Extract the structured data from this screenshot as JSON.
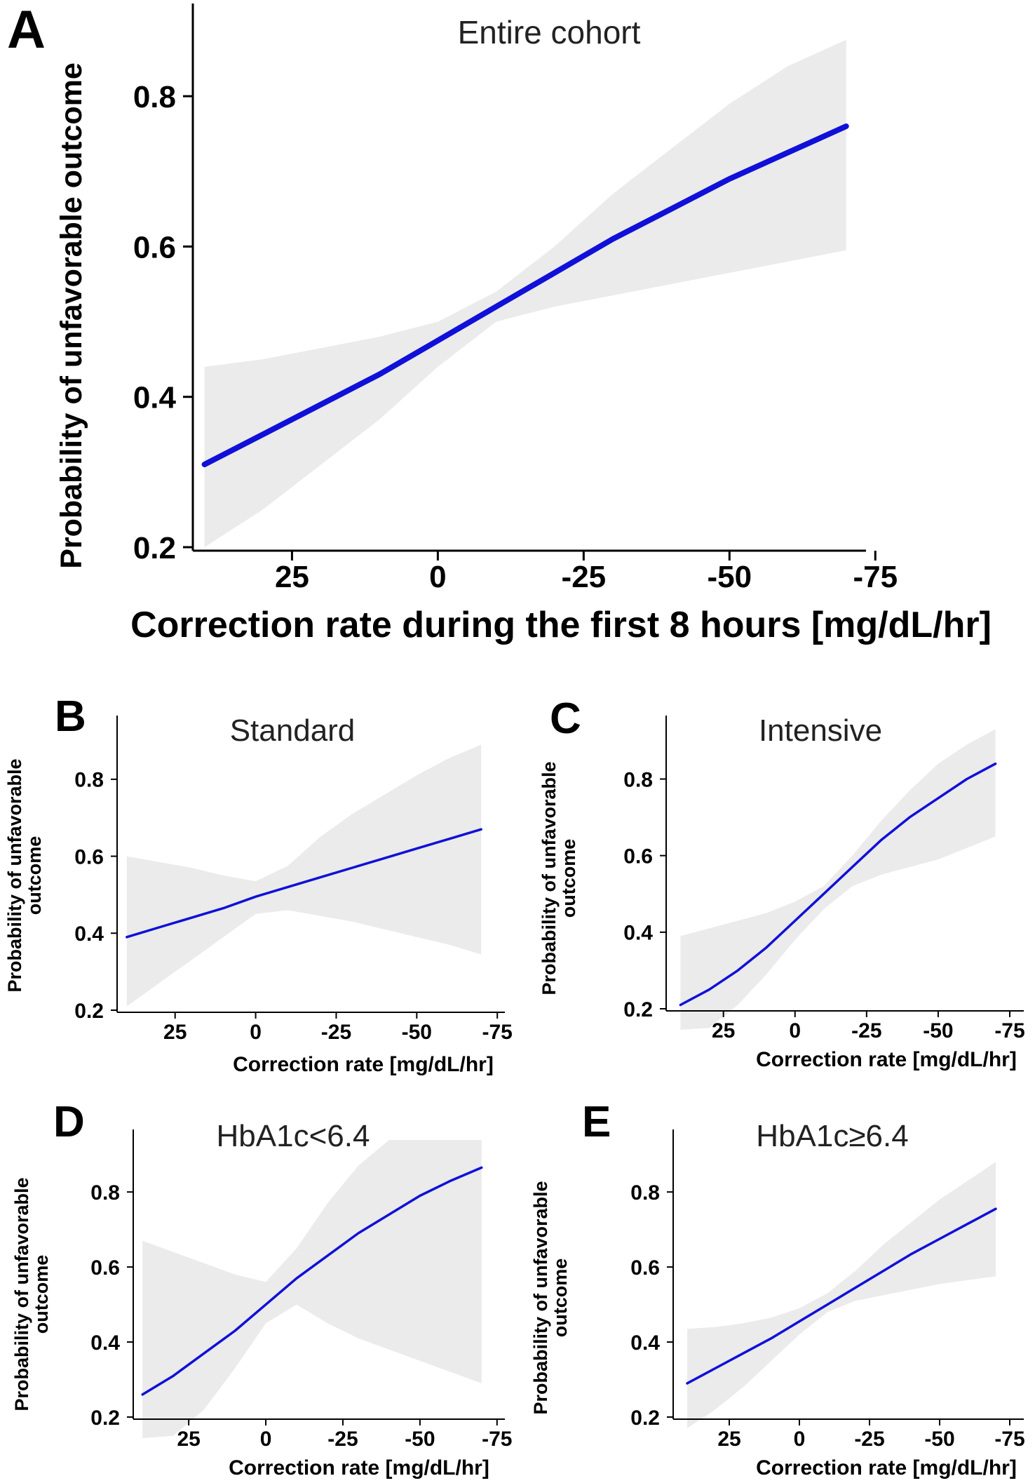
{
  "figure": {
    "panels": [
      {
        "id": "A",
        "letter": "A",
        "title": "Entire cohort",
        "ylabel_lines": [
          "Probability of unfavorable outcome"
        ],
        "xlabel": "Correction rate during the first 8 hours [mg/dL/hr]"
      },
      {
        "id": "B",
        "letter": "B",
        "title": "Standard",
        "ylabel_lines": [
          "Probability of unfavorable",
          "outcome"
        ],
        "xlabel": "Correction rate [mg/dL/hr]"
      },
      {
        "id": "C",
        "letter": "C",
        "title": "Intensive",
        "ylabel_lines": [
          "Probability of unfavorable",
          "outcome"
        ],
        "xlabel": "Correction rate [mg/dL/hr]"
      },
      {
        "id": "D",
        "letter": "D",
        "title": "HbA1c<6.4",
        "ylabel_lines": [
          "Probability of unfavorable",
          "outcome"
        ],
        "xlabel": "Correction rate [mg/dL/hr]"
      },
      {
        "id": "E",
        "letter": "E",
        "title": "HbA1c≥6.4",
        "ylabel_lines": [
          "Probability of unfavorable",
          "outcome"
        ],
        "xlabel": "Correction rate [mg/dL/hr]"
      }
    ]
  },
  "chart_data": [
    {
      "id": "A",
      "type": "line",
      "title": "Entire cohort",
      "xlabel": "Correction rate during the first 8 hours [mg/dL/hr]",
      "ylabel": "Probability of unfavorable outcome",
      "x_reversed": true,
      "xlim": [
        42,
        -71
      ],
      "ylim": [
        0.2,
        0.9
      ],
      "xticks": [
        25,
        0,
        -25,
        -50,
        -75
      ],
      "xtick_labels": [
        "25",
        "0",
        "-25",
        "-50",
        "-75"
      ],
      "yticks": [
        0.2,
        0.4,
        0.6,
        0.8
      ],
      "ytick_labels": [
        "0.2",
        "0.4",
        "0.6",
        "0.8"
      ],
      "series": [
        {
          "name": "fit",
          "x": [
            40,
            30,
            20,
            10,
            0,
            -10,
            -20,
            -30,
            -40,
            -50,
            -60,
            -70
          ],
          "y": [
            0.31,
            0.35,
            0.39,
            0.43,
            0.475,
            0.52,
            0.565,
            0.61,
            0.65,
            0.69,
            0.725,
            0.76
          ],
          "lower": [
            0.2,
            0.25,
            0.31,
            0.37,
            0.44,
            0.5,
            0.52,
            0.535,
            0.55,
            0.565,
            0.58,
            0.595
          ],
          "upper": [
            0.44,
            0.45,
            0.465,
            0.48,
            0.5,
            0.54,
            0.6,
            0.67,
            0.73,
            0.79,
            0.84,
            0.875
          ]
        }
      ]
    },
    {
      "id": "B",
      "type": "line",
      "title": "Standard",
      "xlabel": "Correction rate [mg/dL/hr]",
      "ylabel": "Probability of unfavorable outcome",
      "x_reversed": true,
      "xlim": [
        43,
        -73
      ],
      "ylim": [
        0.2,
        0.92
      ],
      "xticks": [
        25,
        0,
        -25,
        -50,
        -75
      ],
      "xtick_labels": [
        "25",
        "0",
        "-25",
        "-50",
        "-75"
      ],
      "yticks": [
        0.2,
        0.4,
        0.6,
        0.8
      ],
      "ytick_labels": [
        "0.2",
        "0.4",
        "0.6",
        "0.8"
      ],
      "series": [
        {
          "name": "fit",
          "x": [
            40,
            30,
            20,
            10,
            0,
            -10,
            -20,
            -30,
            -40,
            -50,
            -60,
            -70
          ],
          "y": [
            0.39,
            0.415,
            0.44,
            0.465,
            0.495,
            0.52,
            0.545,
            0.57,
            0.595,
            0.62,
            0.645,
            0.67
          ],
          "lower": [
            0.21,
            0.27,
            0.33,
            0.39,
            0.45,
            0.46,
            0.445,
            0.43,
            0.41,
            0.39,
            0.37,
            0.345
          ],
          "upper": [
            0.6,
            0.585,
            0.57,
            0.55,
            0.535,
            0.575,
            0.65,
            0.71,
            0.76,
            0.81,
            0.855,
            0.89
          ]
        }
      ]
    },
    {
      "id": "C",
      "type": "line",
      "title": "Intensive",
      "xlabel": "Correction rate [mg/dL/hr]",
      "ylabel": "Probability of unfavorable outcome",
      "x_reversed": true,
      "xlim": [
        45,
        -75
      ],
      "ylim": [
        0.2,
        0.92
      ],
      "xticks": [
        25,
        0,
        -25,
        -50,
        -75
      ],
      "xtick_labels": [
        "25",
        "0",
        "-25",
        "-50",
        "-75"
      ],
      "yticks": [
        0.2,
        0.4,
        0.6,
        0.8
      ],
      "ytick_labels": [
        "0.2",
        "0.4",
        "0.6",
        "0.8"
      ],
      "series": [
        {
          "name": "fit",
          "x": [
            40,
            30,
            20,
            10,
            0,
            -10,
            -20,
            -30,
            -40,
            -50,
            -60,
            -70
          ],
          "y": [
            0.21,
            0.25,
            0.3,
            0.36,
            0.43,
            0.5,
            0.57,
            0.64,
            0.7,
            0.75,
            0.8,
            0.84
          ],
          "lower": [
            0.1,
            0.15,
            0.21,
            0.29,
            0.38,
            0.46,
            0.52,
            0.55,
            0.57,
            0.59,
            0.62,
            0.65
          ],
          "upper": [
            0.39,
            0.41,
            0.43,
            0.45,
            0.48,
            0.52,
            0.6,
            0.69,
            0.77,
            0.84,
            0.89,
            0.93
          ]
        }
      ]
    },
    {
      "id": "D",
      "type": "line",
      "title": "HbA1c<6.4",
      "xlabel": "Correction rate [mg/dL/hr]",
      "ylabel": "Probability of unfavorable outcome",
      "x_reversed": true,
      "xlim": [
        43,
        -73
      ],
      "ylim": [
        0.2,
        0.92
      ],
      "xticks": [
        25,
        0,
        -25,
        -50,
        -75
      ],
      "xtick_labels": [
        "25",
        "0",
        "-25",
        "-50",
        "-75"
      ],
      "yticks": [
        0.2,
        0.4,
        0.6,
        0.8
      ],
      "ytick_labels": [
        "0.2",
        "0.4",
        "0.6",
        "0.8"
      ],
      "series": [
        {
          "name": "fit",
          "x": [
            40,
            30,
            20,
            10,
            0,
            -10,
            -20,
            -30,
            -40,
            -50,
            -60,
            -70
          ],
          "y": [
            0.26,
            0.31,
            0.37,
            0.43,
            0.5,
            0.57,
            0.63,
            0.69,
            0.74,
            0.79,
            0.83,
            0.865
          ],
          "lower": [
            0.09,
            0.15,
            0.22,
            0.33,
            0.45,
            0.5,
            0.45,
            0.41,
            0.38,
            0.35,
            0.32,
            0.29
          ],
          "upper": [
            0.67,
            0.64,
            0.61,
            0.58,
            0.56,
            0.65,
            0.77,
            0.87,
            0.94,
            0.98,
            1.0,
            1.0
          ]
        }
      ]
    },
    {
      "id": "E",
      "type": "line",
      "title": "HbA1c≥6.4",
      "xlabel": "Correction rate [mg/dL/hr]",
      "ylabel": "Probability of unfavorable outcome",
      "x_reversed": true,
      "xlim": [
        45,
        -75
      ],
      "ylim": [
        0.2,
        0.92
      ],
      "xticks": [
        25,
        0,
        -25,
        -50,
        -75
      ],
      "xtick_labels": [
        "25",
        "0",
        "-25",
        "-50",
        "-75"
      ],
      "yticks": [
        0.2,
        0.4,
        0.6,
        0.8
      ],
      "ytick_labels": [
        "0.2",
        "0.4",
        "0.6",
        "0.8"
      ],
      "series": [
        {
          "name": "fit",
          "x": [
            40,
            30,
            20,
            10,
            0,
            -10,
            -20,
            -30,
            -40,
            -50,
            -60,
            -70
          ],
          "y": [
            0.29,
            0.33,
            0.37,
            0.41,
            0.455,
            0.5,
            0.545,
            0.59,
            0.635,
            0.675,
            0.715,
            0.755
          ],
          "lower": [
            0.17,
            0.22,
            0.28,
            0.35,
            0.42,
            0.48,
            0.51,
            0.525,
            0.54,
            0.555,
            0.565,
            0.575
          ],
          "upper": [
            0.435,
            0.44,
            0.45,
            0.465,
            0.49,
            0.53,
            0.59,
            0.66,
            0.72,
            0.78,
            0.83,
            0.88
          ]
        }
      ]
    }
  ]
}
